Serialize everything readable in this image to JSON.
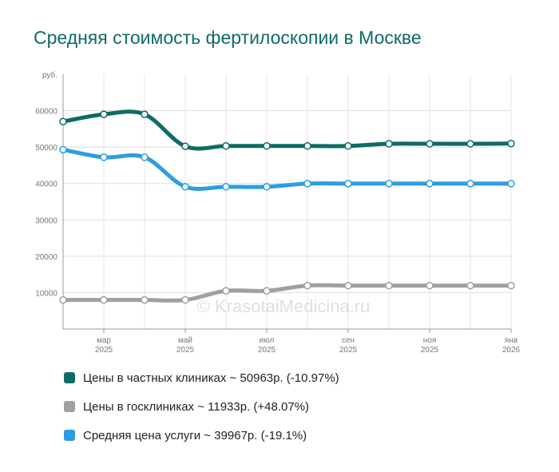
{
  "title": "Средняя стоимость фертилоскопии в Москве",
  "chart_data": {
    "type": "line",
    "title": "Средняя стоимость фертилоскопии в Москве",
    "ylabel": "руб.",
    "ylim": [
      0,
      70000
    ],
    "yticks": [
      10000,
      20000,
      30000,
      40000,
      50000,
      60000
    ],
    "grid": true,
    "legend_position": "bottom",
    "x": [
      "2025-02",
      "2025-03",
      "2025-04",
      "2025-05",
      "2025-06",
      "2025-07",
      "2025-08",
      "2025-09",
      "2025-10",
      "2025-11",
      "2025-12",
      "2026-01"
    ],
    "xtick_labels": [
      {
        "month": "мар",
        "year": "2025",
        "index": 1
      },
      {
        "month": "май",
        "year": "2025",
        "index": 3
      },
      {
        "month": "июл",
        "year": "2025",
        "index": 5
      },
      {
        "month": "сен",
        "year": "2025",
        "index": 7
      },
      {
        "month": "ноя",
        "year": "2025",
        "index": 9
      },
      {
        "month": "янв",
        "year": "2026",
        "index": 11
      }
    ],
    "watermark": "© KrasotaiMedicina.ru",
    "series": [
      {
        "name": "Цены в частных клиниках",
        "color": "#0e6b66",
        "values": [
          57000,
          59000,
          59000,
          50200,
          50300,
          50300,
          50300,
          50300,
          50900,
          50900,
          50900,
          50963
        ]
      },
      {
        "name": "Цены в госклиниках",
        "color": "#a0a0a0",
        "values": [
          8000,
          8000,
          8000,
          8000,
          10500,
          10500,
          11933,
          11933,
          11933,
          11933,
          11933,
          11933
        ]
      },
      {
        "name": "Средняя цена услуги",
        "color": "#2d9de0",
        "values": [
          49300,
          47200,
          47200,
          39100,
          39100,
          39100,
          39967,
          39967,
          39967,
          39967,
          39967,
          39967
        ]
      }
    ]
  },
  "legend": [
    {
      "label": "Цены в частных клиниках ~ 50963р. (-10.97%)",
      "color": "#0e6b66"
    },
    {
      "label": "Цены в госклиниках ~ 11933р. (+48.07%)",
      "color": "#a0a0a0"
    },
    {
      "label": "Средняя цена услуги ~ 39967р. (-19.1%)",
      "color": "#2d9de0"
    }
  ]
}
